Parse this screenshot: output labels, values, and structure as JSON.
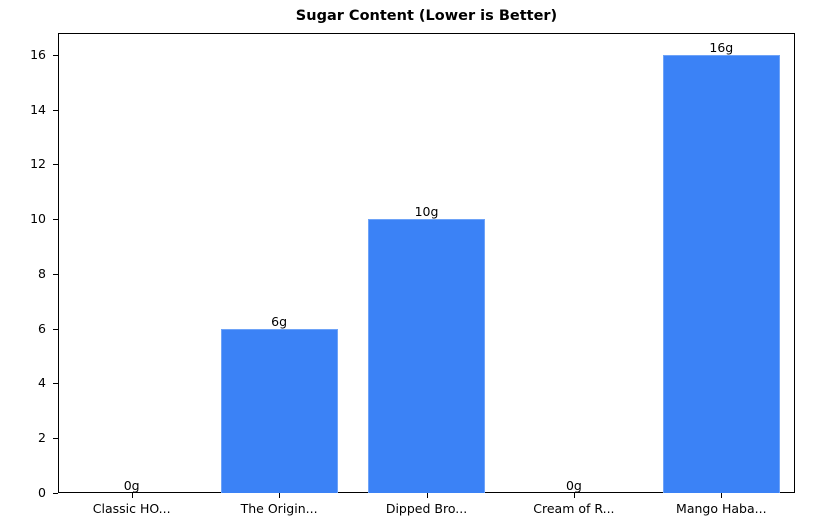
{
  "chart_data": {
    "type": "bar",
    "title": "Sugar Content (Lower is Better)",
    "xlabel": "",
    "ylabel": "",
    "categories": [
      "Classic HO...",
      "The Origin...",
      "Dipped Bro...",
      "Cream of R...",
      "Mango Haba..."
    ],
    "values": [
      0,
      6,
      10,
      0,
      16
    ],
    "value_labels": [
      "0g",
      "6g",
      "10g",
      "0g",
      "16g"
    ],
    "yticks": [
      0,
      2,
      4,
      6,
      8,
      10,
      12,
      14,
      16
    ],
    "ylim": [
      0,
      16.8
    ],
    "grid": false,
    "legend": null,
    "bar_color": "#3b82f6"
  }
}
